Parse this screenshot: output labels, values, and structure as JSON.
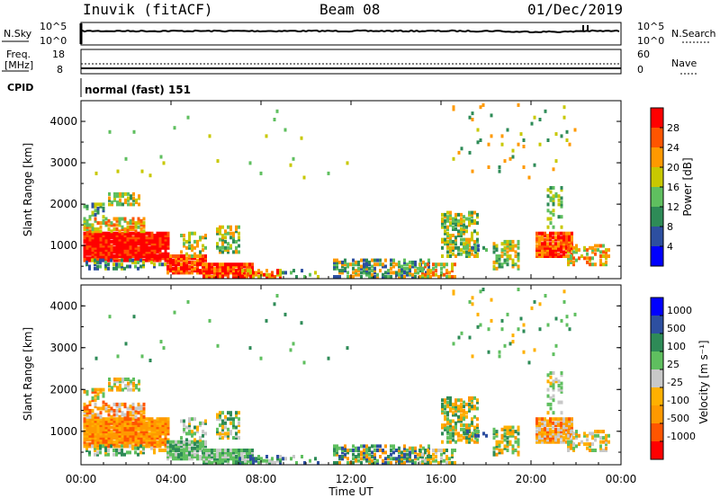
{
  "header": {
    "station": "Inuvik (fitACF)",
    "beam": "Beam 08",
    "date": "01/Dec/2019"
  },
  "noise_panel": {
    "left_label": "N.Sky",
    "left_ticks": [
      "10^5",
      "10^0"
    ],
    "right_label": "N.Search",
    "right_ticks": [
      "10^5",
      "10^0"
    ]
  },
  "freq_panel": {
    "left_label_1": "Freq.",
    "left_label_2": "[MHz]",
    "left_ticks": [
      "18",
      "8"
    ],
    "right_label": "Nave",
    "right_ticks": [
      "60",
      "0"
    ]
  },
  "cpid": {
    "label": "CPID",
    "value": "normal (fast) 151"
  },
  "colors": {
    "power": [
      "#0000ff",
      "#2d4fa0",
      "#2e8b57",
      "#5fbf5f",
      "#c8c800",
      "#ff9900",
      "#ff5500",
      "#ff0000"
    ],
    "velocity": [
      "#ff0000",
      "#ff5500",
      "#ff9900",
      "#ffb000",
      "#c8c8c8",
      "#5fbf5f",
      "#2e8b57",
      "#2d4fa0",
      "#0000ff"
    ]
  },
  "chart_data": [
    {
      "type": "heatmap",
      "title": "Power",
      "ylabel": "Slant Range [km]",
      "yticks": [
        "1000",
        "2000",
        "3000",
        "4000"
      ],
      "ylim": [
        200,
        4500
      ],
      "xlim": [
        0,
        24
      ],
      "colorbar_label": "Power [dB]",
      "colorbar_ticks": [
        "4",
        "8",
        "12",
        "16",
        "20",
        "24",
        "28"
      ],
      "colorbar_range": [
        0,
        32
      ]
    },
    {
      "type": "heatmap",
      "title": "Velocity",
      "ylabel": "Slant Range [km]",
      "yticks": [
        "1000",
        "2000",
        "3000",
        "4000"
      ],
      "ylim": [
        200,
        4500
      ],
      "xlim": [
        0,
        24
      ],
      "xticks": [
        "00:00",
        "04:00",
        "08:00",
        "12:00",
        "16:00",
        "20:00",
        "00:00"
      ],
      "xlabel": "Time UT",
      "colorbar_label": "Velocity [m s⁻¹]",
      "colorbar_ticks": [
        "1000",
        "500",
        "100",
        "25",
        "-25",
        "-100",
        "-500",
        "-1000"
      ]
    }
  ]
}
